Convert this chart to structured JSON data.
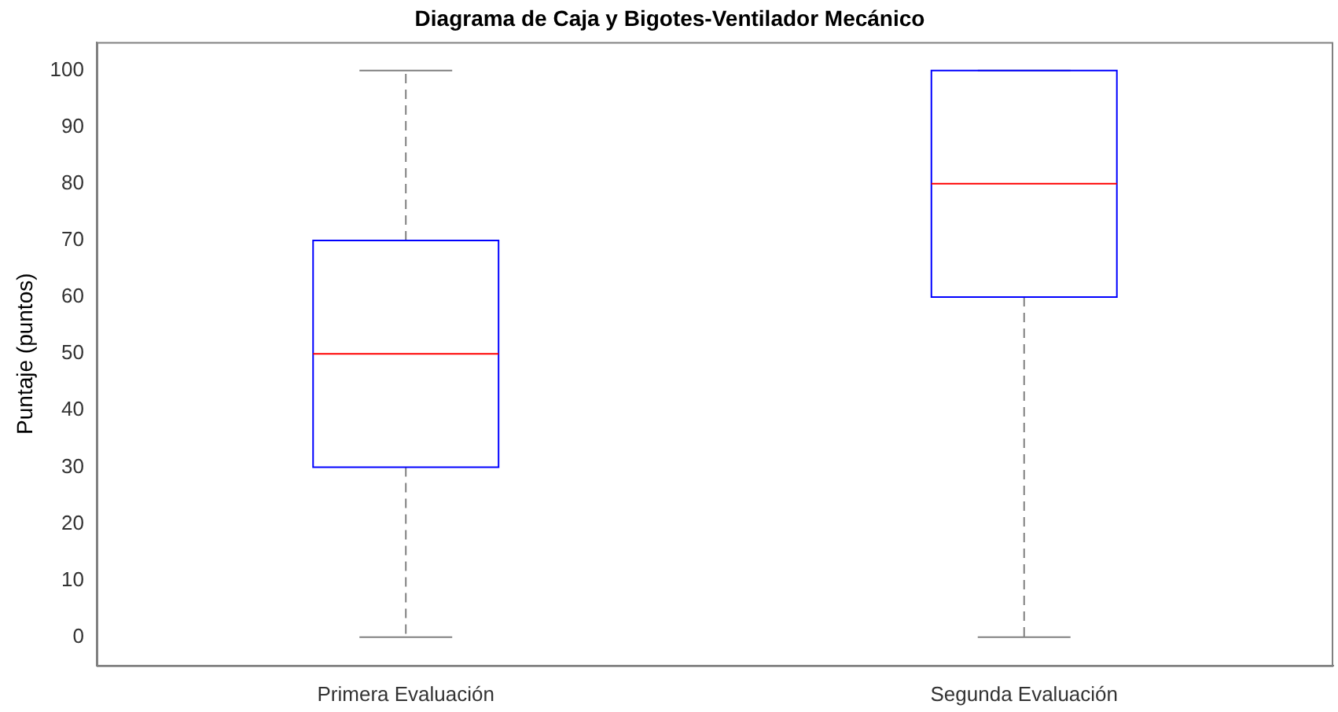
{
  "chart_data": {
    "type": "box",
    "title": "Diagrama de Caja y Bigotes-Ventilador Mecánico",
    "ylabel": "Puntaje (puntos)",
    "categories": [
      "Primera Evaluación",
      "Segunda Evaluación"
    ],
    "series": [
      {
        "color": "#0000ff",
        "boxes": [
          {
            "low": 0,
            "q1": 30,
            "median": 50,
            "q3": 70,
            "high": 100
          },
          {
            "low": 0,
            "q1": 60,
            "median": 80,
            "q3": 100,
            "high": 100
          }
        ]
      }
    ],
    "ylim": [
      -5,
      105
    ],
    "yticks": [
      0,
      10,
      20,
      30,
      40,
      50,
      60,
      70,
      80,
      90,
      100
    ],
    "grid": false,
    "legend": false
  }
}
